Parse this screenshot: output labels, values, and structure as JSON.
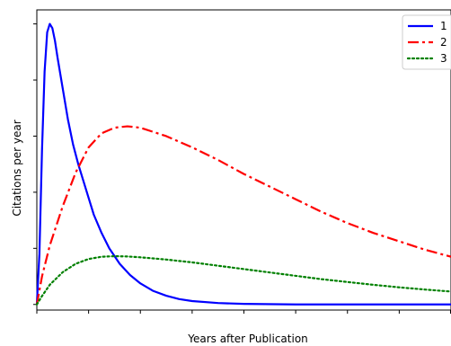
{
  "chart_data": {
    "type": "line",
    "title": "",
    "xlabel": "Years after Publication",
    "ylabel": "Citations per year",
    "xlim": [
      0,
      8
    ],
    "ylim": [
      -0.02,
      1.05
    ],
    "x_ticks_count": 9,
    "y_ticks_count": 6,
    "grid": false,
    "legend_position": "top-right",
    "series": [
      {
        "name": "1",
        "color": "#0000ff",
        "style": "solid",
        "x": [
          0,
          0.05,
          0.1,
          0.15,
          0.2,
          0.25,
          0.3,
          0.35,
          0.4,
          0.5,
          0.6,
          0.7,
          0.8,
          0.9,
          1.0,
          1.1,
          1.25,
          1.4,
          1.6,
          1.8,
          2.0,
          2.25,
          2.5,
          2.75,
          3.0,
          3.5,
          4.0,
          5.0,
          6.0,
          7.0,
          8.0
        ],
        "y": [
          0.0,
          0.18,
          0.55,
          0.83,
          0.97,
          1.0,
          0.985,
          0.94,
          0.88,
          0.77,
          0.66,
          0.57,
          0.5,
          0.44,
          0.38,
          0.32,
          0.255,
          0.2,
          0.145,
          0.105,
          0.075,
          0.048,
          0.031,
          0.019,
          0.012,
          0.005,
          0.002,
          0.0,
          0.0,
          0.0,
          0.0
        ]
      },
      {
        "name": "2",
        "color": "#ff0000",
        "style": "dashdot",
        "x": [
          0,
          0.1,
          0.25,
          0.5,
          0.75,
          1.0,
          1.25,
          1.5,
          1.75,
          2.0,
          2.5,
          3.0,
          3.5,
          4.0,
          4.5,
          5.0,
          5.5,
          6.0,
          6.5,
          7.0,
          7.5,
          8.0
        ],
        "y": [
          0.0,
          0.1,
          0.21,
          0.35,
          0.47,
          0.56,
          0.61,
          0.63,
          0.635,
          0.63,
          0.6,
          0.56,
          0.515,
          0.465,
          0.42,
          0.375,
          0.33,
          0.29,
          0.255,
          0.225,
          0.195,
          0.17
        ]
      },
      {
        "name": "3",
        "color": "#008000",
        "style": "dotted",
        "x": [
          0,
          0.1,
          0.25,
          0.5,
          0.75,
          1.0,
          1.25,
          1.5,
          1.75,
          2.0,
          2.5,
          3.0,
          3.5,
          4.0,
          4.5,
          5.0,
          5.5,
          6.0,
          6.5,
          7.0,
          7.5,
          8.0
        ],
        "y": [
          0.0,
          0.03,
          0.07,
          0.115,
          0.145,
          0.162,
          0.17,
          0.172,
          0.171,
          0.168,
          0.16,
          0.15,
          0.138,
          0.126,
          0.114,
          0.102,
          0.09,
          0.08,
          0.07,
          0.061,
          0.053,
          0.046
        ]
      }
    ]
  }
}
